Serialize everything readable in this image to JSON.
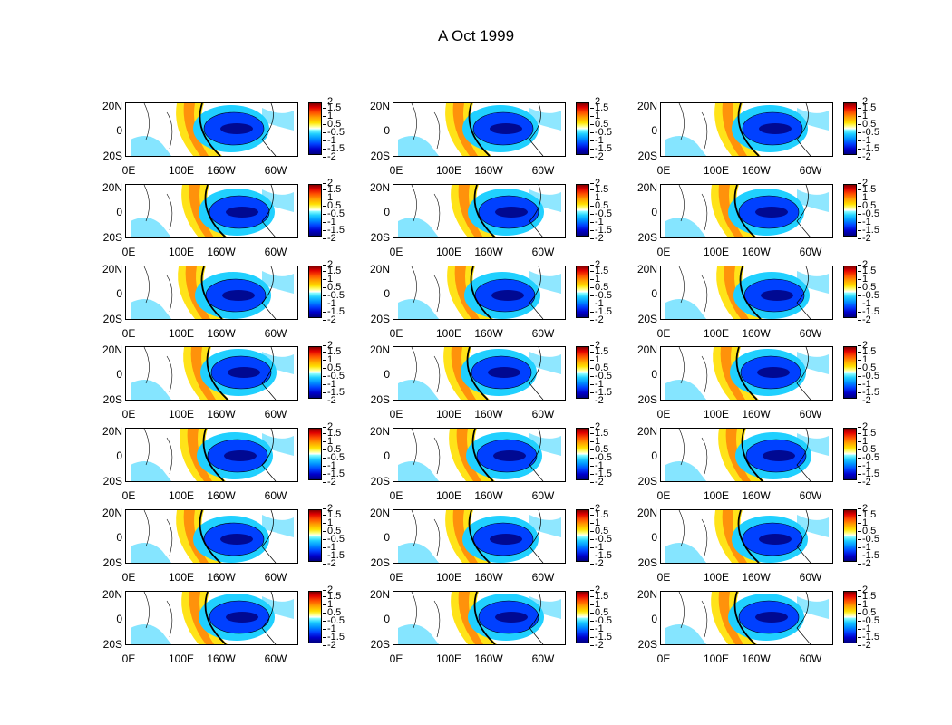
{
  "title": "A Oct 1999",
  "chart_data": {
    "type": "heatmap",
    "title": "A Oct 1999",
    "panel_grid": {
      "rows": 7,
      "cols": 3
    },
    "xlabel": "",
    "ylabel": "",
    "x_ticks": [
      "0E",
      "100E",
      "160W",
      "60W"
    ],
    "y_ticks": [
      "20N",
      "0",
      "20S"
    ],
    "colorbar": {
      "ticks": [
        "2",
        "1.5",
        "1",
        "0.5",
        "-0.5",
        "-1",
        "-1.5",
        "-2"
      ],
      "range": [
        -2,
        2
      ],
      "colors": [
        "#00007f",
        "#0040ff",
        "#20d0ff",
        "#ffffff",
        "#ffe000",
        "#ff5000",
        "#800000"
      ]
    },
    "pattern": "strong negative (blue) anomaly centred in the central equatorial Pacific near 160W-140W, positive (yellow/orange) anomaly along the western Pacific diagonal band, near-zero white elsewhere"
  }
}
